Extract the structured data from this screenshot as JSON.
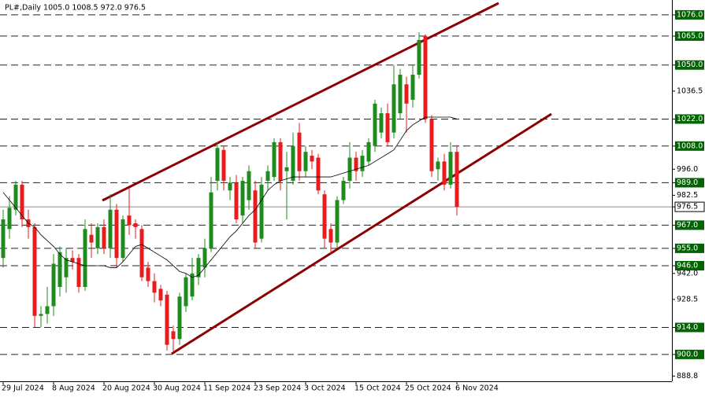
{
  "chart_data": {
    "type": "candlestick",
    "title": "PL#,Daily  1005.0 1008.5 972.0 976.5",
    "categories": [
      "29 Jul 2024",
      null,
      null,
      null,
      null,
      null,
      null,
      null,
      "8 Aug 2024",
      null,
      null,
      null,
      null,
      null,
      null,
      null,
      "20 Aug 2024",
      null,
      null,
      null,
      null,
      null,
      null,
      null,
      "30 Aug 2024",
      null,
      null,
      null,
      null,
      null,
      null,
      null,
      "11 Sep 2024",
      null,
      null,
      null,
      null,
      null,
      null,
      null,
      "23 Sep 2024",
      null,
      null,
      null,
      null,
      null,
      null,
      null,
      "3 Oct 2024",
      null,
      null,
      null,
      null,
      null,
      null,
      null,
      "15 Oct 2024",
      null,
      null,
      null,
      null,
      null,
      null,
      null,
      "25 Oct 2024",
      null,
      null,
      null,
      null,
      null,
      null,
      null,
      "6 Nov 2024"
    ],
    "ohlc": [
      [
        950,
        975,
        945,
        970
      ],
      [
        965,
        982,
        960,
        976
      ],
      [
        975,
        990,
        972,
        988
      ],
      [
        988,
        990,
        966,
        970
      ],
      [
        970,
        975,
        960,
        966
      ],
      [
        966,
        968,
        914,
        920
      ],
      [
        920,
        925,
        914,
        921
      ],
      [
        921,
        935,
        916,
        925
      ],
      [
        925,
        952,
        920,
        947
      ],
      [
        935,
        956,
        930,
        953
      ],
      [
        940,
        955,
        932,
        950
      ],
      [
        950,
        954,
        944,
        948
      ],
      [
        950,
        952,
        932,
        935
      ],
      [
        935,
        970,
        933,
        965
      ],
      [
        962,
        968,
        950,
        958
      ],
      [
        955,
        968,
        952,
        966
      ],
      [
        966,
        970,
        952,
        955
      ],
      [
        955,
        983,
        950,
        975
      ],
      [
        975,
        978,
        945,
        950
      ],
      [
        950,
        972,
        948,
        970
      ],
      [
        972,
        986,
        962,
        967
      ],
      [
        968,
        970,
        960,
        966
      ],
      [
        965,
        967,
        938,
        940
      ],
      [
        945,
        948,
        935,
        938
      ],
      [
        938,
        942,
        927,
        932
      ],
      [
        934,
        936,
        925,
        928
      ],
      [
        931,
        933,
        902,
        905
      ],
      [
        912,
        915,
        901,
        908
      ],
      [
        908,
        932,
        905,
        930
      ],
      [
        925,
        942,
        922,
        940
      ],
      [
        930,
        950,
        928,
        942
      ],
      [
        940,
        952,
        936,
        950
      ],
      [
        945,
        960,
        940,
        955
      ],
      [
        955,
        992,
        953,
        984
      ],
      [
        990,
        1010,
        985,
        1007
      ],
      [
        1006,
        1008,
        985,
        990
      ],
      [
        985,
        992,
        980,
        989
      ],
      [
        989,
        993,
        968,
        970
      ],
      [
        972,
        992,
        968,
        990
      ],
      [
        980,
        998,
        975,
        995
      ],
      [
        985,
        990,
        955,
        958
      ],
      [
        960,
        992,
        958,
        988
      ],
      [
        990,
        998,
        985,
        995
      ],
      [
        992,
        1012,
        990,
        1010
      ],
      [
        1010,
        1012,
        985,
        990
      ],
      [
        995,
        1005,
        970,
        997
      ],
      [
        990,
        1015,
        988,
        1008
      ],
      [
        1015,
        1020,
        990,
        995
      ],
      [
        995,
        1008,
        992,
        1005
      ],
      [
        1003,
        1006,
        996,
        1000
      ],
      [
        1002,
        1004,
        983,
        985
      ],
      [
        983,
        985,
        955,
        960
      ],
      [
        965,
        968,
        952,
        958
      ],
      [
        958,
        982,
        955,
        980
      ],
      [
        980,
        992,
        978,
        990
      ],
      [
        990,
        1010,
        986,
        1002
      ],
      [
        1002,
        1005,
        990,
        995
      ],
      [
        995,
        1006,
        992,
        1003
      ],
      [
        1000,
        1012,
        998,
        1010
      ],
      [
        1008,
        1032,
        1005,
        1030
      ],
      [
        1015,
        1028,
        1012,
        1025
      ],
      [
        1025,
        1030,
        1008,
        1010
      ],
      [
        1015,
        1050,
        1012,
        1040
      ],
      [
        1025,
        1048,
        1022,
        1045
      ],
      [
        1040,
        1044,
        1015,
        1030
      ],
      [
        1032,
        1050,
        1028,
        1045
      ],
      [
        1045,
        1067,
        1043,
        1063
      ],
      [
        1065,
        1066,
        1020,
        1022
      ],
      [
        1022,
        1024,
        992,
        995
      ],
      [
        996,
        1002,
        990,
        1000
      ],
      [
        1000,
        1004,
        985,
        988
      ],
      [
        988,
        1010,
        986,
        1005
      ],
      [
        1005,
        1008.5,
        972,
        976.5
      ]
    ],
    "up_color": "#1e8c1e",
    "down_color": "#e81c1c",
    "ma": [
      984,
      980,
      976,
      972,
      968,
      966,
      962,
      959,
      956,
      952,
      949,
      948,
      947,
      946,
      946,
      946,
      946,
      945,
      945,
      948,
      952,
      956,
      957,
      955,
      953,
      951,
      949,
      946,
      943,
      942,
      940,
      941,
      945,
      949,
      953,
      957,
      961,
      964,
      968,
      972,
      975,
      980,
      985,
      988,
      990,
      991,
      992,
      992,
      992,
      992,
      992,
      992,
      992,
      993,
      994,
      995,
      996,
      997,
      998,
      1000,
      1002,
      1004,
      1006,
      1011,
      1016,
      1019,
      1021,
      1023,
      1023,
      1023,
      1023,
      1023,
      1022
    ],
    "ma_color": "#000000",
    "ylim": [
      886.1,
      1083.7
    ],
    "yticks": [
      {
        "value": 1076,
        "label": "1076.0",
        "level": true
      },
      {
        "value": 1065,
        "label": "1065.0",
        "level": true
      },
      {
        "value": 1050,
        "label": "1050.0",
        "level": true
      },
      {
        "value": 1036.5,
        "label": "1036.5"
      },
      {
        "value": 1022,
        "label": "1022.0",
        "level": true
      },
      {
        "value": 1008,
        "label": "1008.0",
        "level": true
      },
      {
        "value": 996,
        "label": "996.0"
      },
      {
        "value": 989,
        "label": "989.0",
        "level": true
      },
      {
        "value": 982.5,
        "label": "982.5"
      },
      {
        "value": 976.5,
        "label": "976.5",
        "current": true
      },
      {
        "value": 967,
        "label": "967.0",
        "level": true
      },
      {
        "value": 955,
        "label": "955.0",
        "level": true
      },
      {
        "value": 946,
        "label": "946.0",
        "level": true
      },
      {
        "value": 942,
        "label": "942.0"
      },
      {
        "value": 928.5,
        "label": "928.5"
      },
      {
        "value": 914,
        "label": "914.0",
        "level": true
      },
      {
        "value": 900,
        "label": "900.0",
        "level": true
      },
      {
        "value": 888.8,
        "label": "888.8"
      }
    ],
    "level_color": "#006400"
  }
}
